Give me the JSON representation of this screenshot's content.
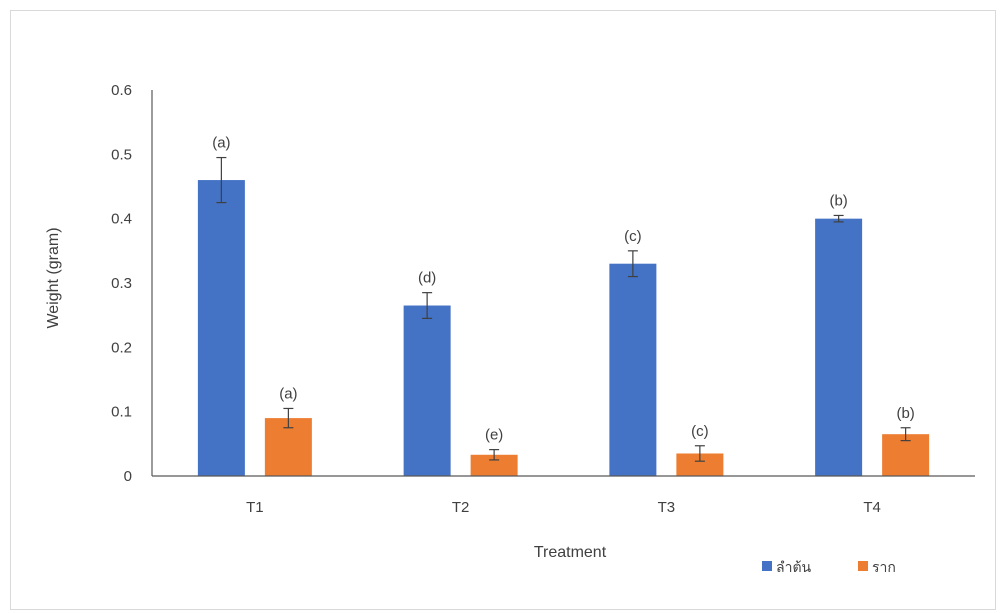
{
  "chart_data": {
    "type": "bar",
    "title": "",
    "xlabel": "Treatment",
    "ylabel": "Weight (gram)",
    "ylim": [
      0,
      0.6
    ],
    "yticks": [
      "0",
      "0.1",
      "0.2",
      "0.3",
      "0.4",
      "0.5",
      "0.6"
    ],
    "categories": [
      "T1",
      "T2",
      "T3",
      "T4"
    ],
    "legend_position": "bottom-right",
    "grid": false,
    "series": [
      {
        "name": "ลำต้น",
        "color": "#4472c4",
        "values": [
          0.46,
          0.265,
          0.33,
          0.4
        ],
        "errors": [
          0.035,
          0.02,
          0.02,
          0.005
        ],
        "letters": [
          "(a)",
          "(d)",
          "(c)",
          "(b)"
        ]
      },
      {
        "name": "ราก",
        "color": "#ed7d31",
        "values": [
          0.09,
          0.033,
          0.035,
          0.065
        ],
        "errors": [
          0.015,
          0.008,
          0.012,
          0.01
        ],
        "letters": [
          "(a)",
          "(e)",
          "(c)",
          "(b)"
        ]
      }
    ]
  }
}
